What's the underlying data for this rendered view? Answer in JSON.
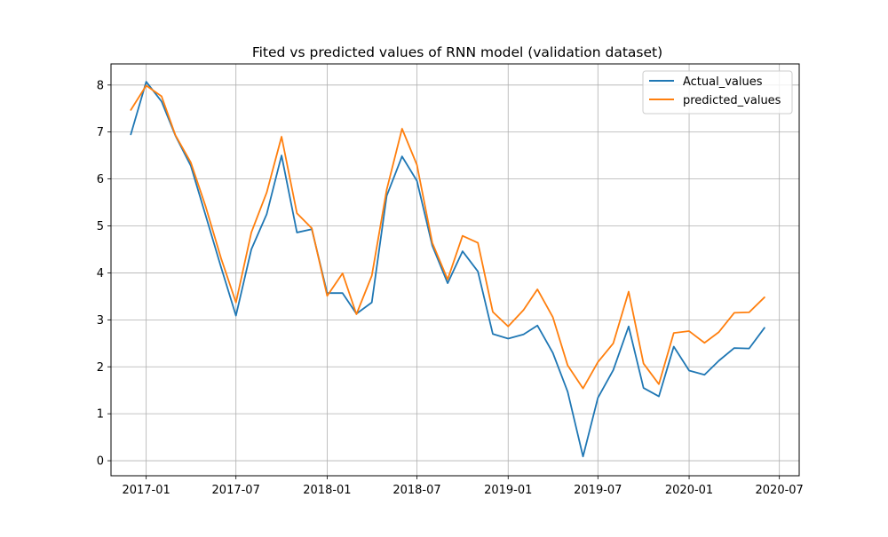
{
  "chart_data": {
    "type": "line",
    "title": "Fited vs predicted values of RNN model (validation dataset)",
    "xlabel": "",
    "ylabel": "",
    "grid": true,
    "legend_position": "top-right",
    "x_ticks": [
      "2017-01",
      "2017-07",
      "2018-01",
      "2018-07",
      "2019-01",
      "2019-07",
      "2020-01",
      "2020-07"
    ],
    "y_ticks": [
      "0",
      "1",
      "2",
      "3",
      "4",
      "5",
      "6",
      "7",
      "8"
    ],
    "xlim": [
      "2016-10-22",
      "2020-08-10"
    ],
    "ylim": [
      -0.32,
      8.45
    ],
    "x": [
      "2016-12-01",
      "2017-01-01",
      "2017-02-01",
      "2017-03-01",
      "2017-04-01",
      "2017-05-01",
      "2017-06-01",
      "2017-07-01",
      "2017-08-01",
      "2017-09-01",
      "2017-10-01",
      "2017-11-01",
      "2017-12-01",
      "2018-01-01",
      "2018-02-01",
      "2018-03-01",
      "2018-04-01",
      "2018-05-01",
      "2018-06-01",
      "2018-07-01",
      "2018-08-01",
      "2018-09-01",
      "2018-10-01",
      "2018-11-01",
      "2018-12-01",
      "2019-01-01",
      "2019-02-01",
      "2019-03-01",
      "2019-04-01",
      "2019-05-01",
      "2019-06-01",
      "2019-07-01",
      "2019-08-01",
      "2019-09-01",
      "2019-10-01",
      "2019-11-01",
      "2019-12-01",
      "2020-01-01",
      "2020-02-01",
      "2020-03-01",
      "2020-04-01",
      "2020-05-01",
      "2020-06-01"
    ],
    "series": [
      {
        "name": "Actual_values",
        "color": "#1f77b4",
        "values": [
          6.95,
          8.07,
          7.65,
          6.92,
          6.28,
          5.22,
          4.12,
          3.09,
          4.5,
          5.25,
          6.5,
          4.86,
          4.93,
          3.57,
          3.57,
          3.13,
          3.37,
          5.64,
          6.48,
          5.96,
          4.58,
          3.78,
          4.46,
          4.03,
          2.7,
          2.6,
          2.69,
          2.88,
          2.3,
          1.47,
          0.09,
          1.34,
          1.93,
          2.86,
          1.55,
          1.37,
          2.43,
          1.92,
          1.83,
          2.13,
          2.4,
          2.39,
          2.83
        ]
      },
      {
        "name": "predicted_values",
        "color": "#ff7f0e",
        "values": [
          7.47,
          7.99,
          7.76,
          6.93,
          6.35,
          5.41,
          4.31,
          3.37,
          4.86,
          5.71,
          6.9,
          5.27,
          4.95,
          3.51,
          3.99,
          3.12,
          3.94,
          5.77,
          7.07,
          6.3,
          4.64,
          3.86,
          4.79,
          4.64,
          3.17,
          2.86,
          3.21,
          3.65,
          3.06,
          2.03,
          1.54,
          2.1,
          2.5,
          3.6,
          2.07,
          1.63,
          2.72,
          2.76,
          2.51,
          2.74,
          3.15,
          3.16,
          3.48
        ]
      }
    ]
  }
}
